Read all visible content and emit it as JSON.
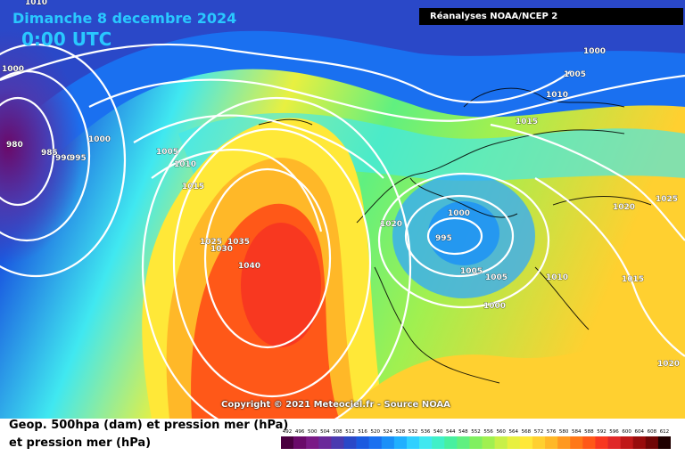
{
  "header": {
    "date": "Dimanche 8 decembre 2024",
    "time": "0:00 UTC",
    "source_box": "Réanalyses NOAA/NCEP 2"
  },
  "footer": {
    "copyright": "Copyright © 2021 Meteociel.fr - Source NOAA",
    "legend_line1": "Geop. 500hpa (dam) et pression mer (hPa)",
    "legend_line2": "et pression mer (hPa)"
  },
  "isobar_labels": [
    "1010",
    "1000",
    "980",
    "985",
    "990",
    "995",
    "1000",
    "1005",
    "1010",
    "1015",
    "1020",
    "1025",
    "1030",
    "1035",
    "1040",
    "1000",
    "1005",
    "1010",
    "1015",
    "1020",
    "995",
    "1000",
    "1005",
    "1005",
    "1000",
    "1010",
    "1015",
    "1020",
    "1025",
    "1020"
  ],
  "colorbar": {
    "values": [
      "492",
      "496",
      "500",
      "504",
      "508",
      "512",
      "516",
      "520",
      "524",
      "528",
      "532",
      "536",
      "540",
      "544",
      "548",
      "552",
      "556",
      "560",
      "564",
      "568",
      "572",
      "576",
      "580",
      "584",
      "588",
      "592",
      "596",
      "600",
      "604",
      "608",
      "612"
    ],
    "colors": [
      "#4a0040",
      "#6a0a6a",
      "#7a1a86",
      "#6a2a9a",
      "#4a3ab0",
      "#2a48c8",
      "#1a5ae0",
      "#1a70f0",
      "#1a90f8",
      "#20b0ff",
      "#30d0ff",
      "#40e8f0",
      "#40f0c8",
      "#48f0a0",
      "#60f080",
      "#80f060",
      "#a0f050",
      "#c8f048",
      "#e8f040",
      "#ffe838",
      "#ffd030",
      "#ffb828",
      "#ff9820",
      "#ff7818",
      "#ff5818",
      "#f83820",
      "#e02828",
      "#c01818",
      "#980c0c",
      "#700606",
      "#200000"
    ]
  }
}
